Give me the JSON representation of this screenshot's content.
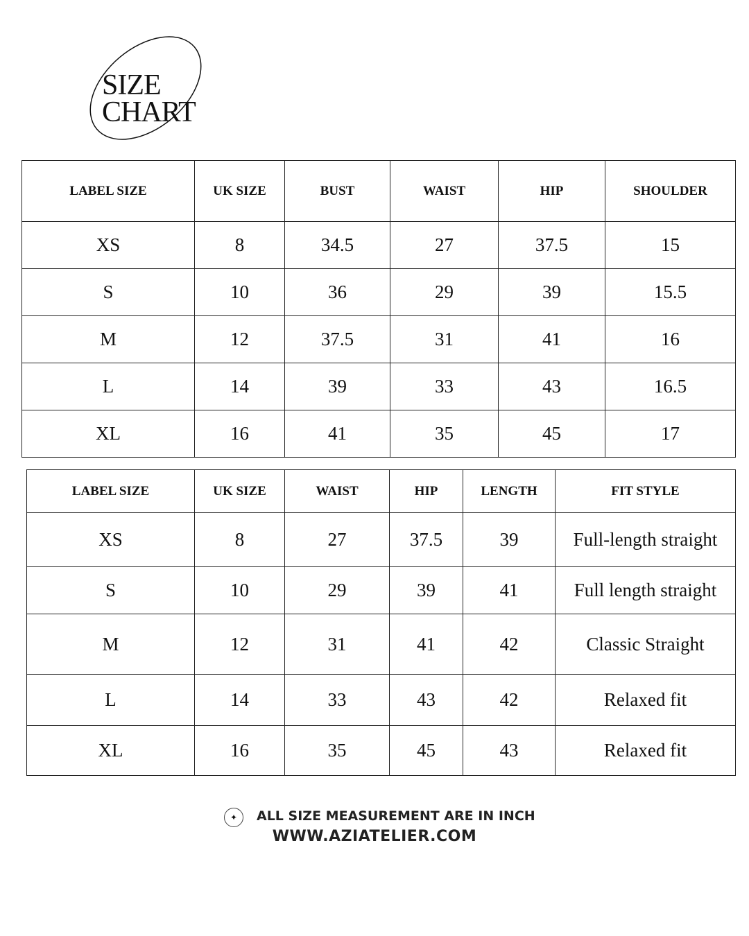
{
  "logo": {
    "line1": "SIZE",
    "line2": "CHART"
  },
  "tables": [
    {
      "headers": [
        "LABEL SIZE",
        "UK SIZE",
        "BUST",
        "WAIST",
        "HIP",
        "SHOULDER"
      ],
      "rows": [
        [
          "XS",
          "8",
          "34.5",
          "27",
          "37.5",
          "15"
        ],
        [
          "S",
          "10",
          "36",
          "29",
          "39",
          "15.5"
        ],
        [
          "M",
          "12",
          "37.5",
          "31",
          "41",
          "16"
        ],
        [
          "L",
          "14",
          "39",
          "33",
          "43",
          "16.5"
        ],
        [
          "XL",
          "16",
          "41",
          "35",
          "45",
          "17"
        ]
      ]
    },
    {
      "headers": [
        "LABEL SIZE",
        "UK SIZE",
        "WAIST",
        "HIP",
        "LENGTH",
        "FIT STYLE"
      ],
      "rows": [
        [
          "XS",
          "8",
          "27",
          "37.5",
          "39",
          "Full-length straight"
        ],
        [
          "S",
          "10",
          "29",
          "39",
          "41",
          "Full length straight"
        ],
        [
          "M",
          "12",
          "31",
          "41",
          "42",
          "Classic Straight"
        ],
        [
          "L",
          "14",
          "33",
          "43",
          "42",
          "Relaxed fit"
        ],
        [
          "XL",
          "16",
          "35",
          "45",
          "43",
          "Relaxed fit"
        ]
      ]
    }
  ],
  "footer": {
    "icon": "sparkle-icon",
    "note": "ALL SIZE MEASUREMENT ARE IN INCH",
    "website": "WWW.AZIATELIER.COM"
  }
}
